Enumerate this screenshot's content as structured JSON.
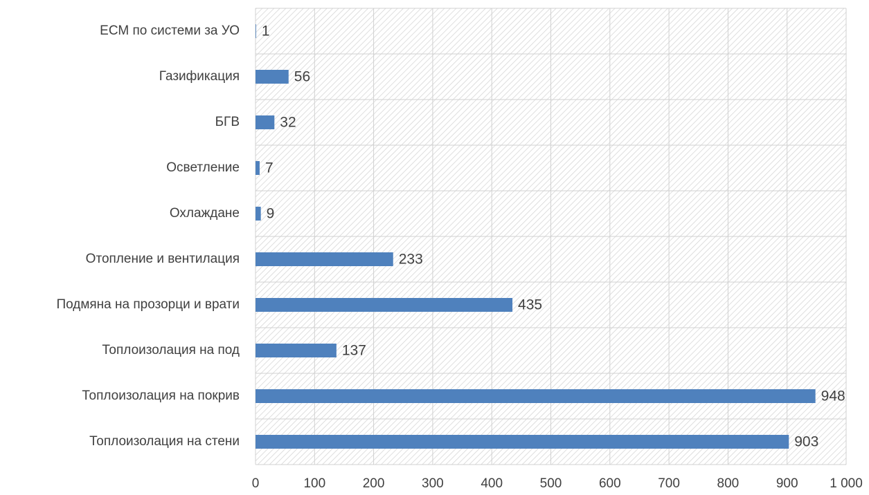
{
  "chart_data": {
    "type": "hbar",
    "categories": [
      "ЕСМ по системи за УО",
      "Газификация",
      "БГВ",
      "Осветление",
      "Охлаждане",
      "Отопление и вентилация",
      "Подмяна на прозорци и врати",
      "Топлоизолация на под",
      "Топлоизолация на покрив",
      "Топлоизолация на стени"
    ],
    "values": [
      1,
      56,
      32,
      7,
      9,
      233,
      435,
      137,
      948,
      903
    ],
    "color": "#4f81bd",
    "xlim": [
      0,
      1000
    ],
    "xticks": [
      0,
      100,
      200,
      300,
      400,
      500,
      600,
      700,
      800,
      900,
      {
        "value": 1000,
        "label": "1 000"
      }
    ],
    "grid": true
  }
}
